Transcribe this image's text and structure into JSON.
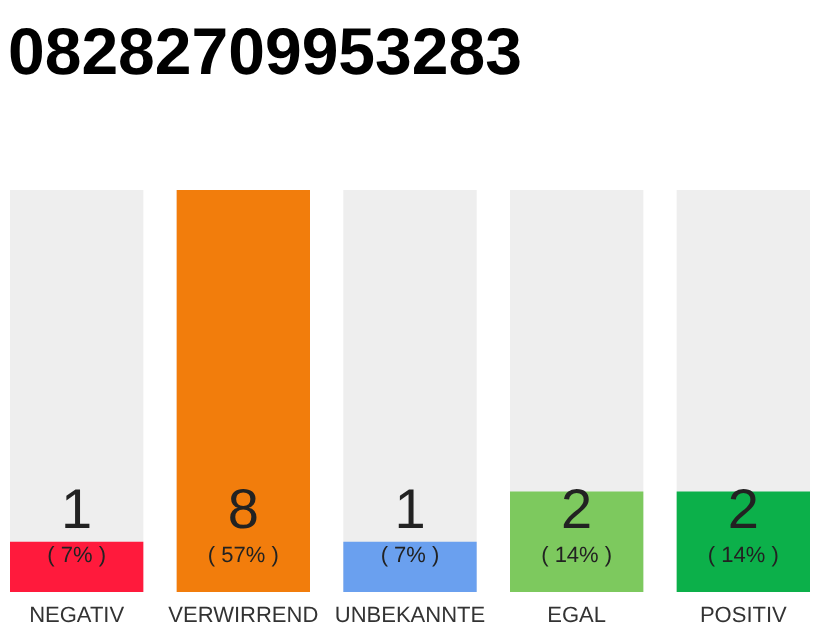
{
  "chart_data": {
    "type": "bar",
    "title": "08282709953283",
    "categories": [
      "NEGATIV",
      "VERWIRREND",
      "UNBEKANNTE",
      "EGAL",
      "POSITIV"
    ],
    "values": [
      1,
      8,
      1,
      2,
      2
    ],
    "colors": [
      "#ff1a3c",
      "#f27d0c",
      "#6aa0ef",
      "#7dc95e",
      "#0cb04a"
    ],
    "ylim": [
      0,
      8
    ],
    "tick_labels": "x",
    "data_labels": true,
    "annotations": [
      "( 7% )",
      "( 57% )",
      "( 7% )",
      "( 14% )",
      "( 14% )"
    ]
  }
}
